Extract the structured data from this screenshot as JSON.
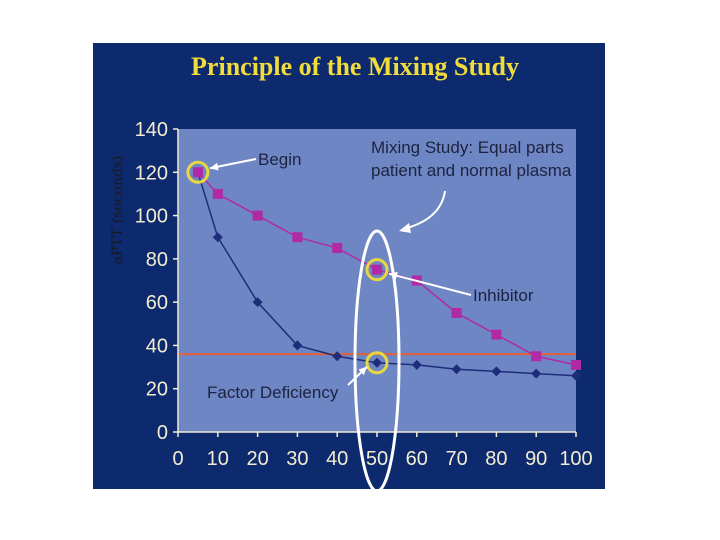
{
  "page": {
    "background": "#ffffff"
  },
  "chart_data": {
    "type": "line",
    "title": "Principle of the Mixing Study",
    "ylabel": "aPTT (seconds)",
    "xlabel": "",
    "x_ticks": [
      0,
      10,
      20,
      30,
      40,
      50,
      60,
      70,
      80,
      90,
      100
    ],
    "y_ticks": [
      0,
      20,
      40,
      60,
      80,
      100,
      120,
      140
    ],
    "xlim": [
      0,
      100
    ],
    "ylim": [
      0,
      140
    ],
    "grid": false,
    "colors": {
      "slide_bg": "#0d2a6e",
      "plot_bg": "#6f86c4",
      "title": "#f2dc3c",
      "tick_text": "#f2ecd2",
      "inhibitor": "#b02aa6",
      "deficiency": "#1e2d7a",
      "reference_line": "#e0603a",
      "annotation_text": "#1c2340",
      "highlight": "#e8d840",
      "ellipse": "#ffffff"
    },
    "series": [
      {
        "name": "Inhibitor",
        "x": [
          5,
          10,
          20,
          30,
          40,
          50,
          60,
          70,
          80,
          90,
          100
        ],
        "y": [
          120,
          110,
          100,
          90,
          85,
          75,
          70,
          55,
          45,
          35,
          31
        ]
      },
      {
        "name": "Factor Deficiency",
        "x": [
          5,
          10,
          20,
          30,
          40,
          50,
          60,
          70,
          80,
          90,
          100
        ],
        "y": [
          120,
          90,
          60,
          40,
          35,
          32,
          31,
          29,
          28,
          27,
          26
        ]
      }
    ],
    "reference_line_y": 36,
    "annotations": {
      "begin": "Begin",
      "mixing_line1": "Mixing Study: Equal parts",
      "mixing_line2": "patient and normal plasma",
      "inhibitor": "Inhibitor",
      "deficiency": "Factor Deficiency"
    },
    "highlights": [
      {
        "x": 5,
        "y": 120
      },
      {
        "x": 50,
        "y": 75
      },
      {
        "x": 50,
        "y": 32
      }
    ],
    "ellipse_at_x": 50
  }
}
